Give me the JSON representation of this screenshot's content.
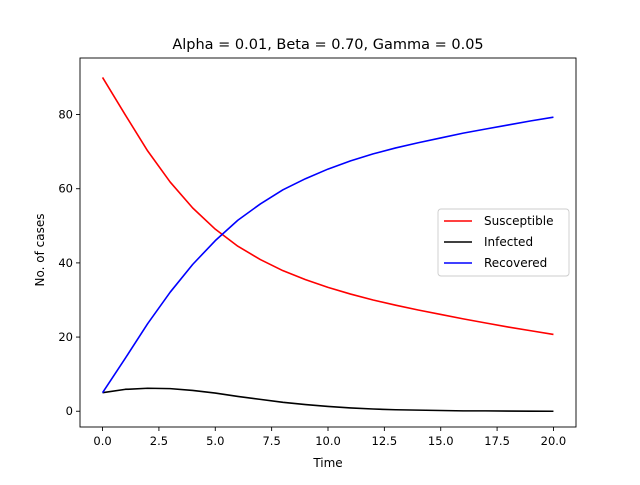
{
  "chart_data": {
    "type": "line",
    "title": "Alpha = 0.01, Beta = 0.70, Gamma = 0.05",
    "xlabel": "Time",
    "ylabel": "No. of cases",
    "xlim": [
      -1,
      21
    ],
    "ylim": [
      -4.25,
      95.25
    ],
    "x_ticks": [
      0.0,
      2.5,
      5.0,
      7.5,
      10.0,
      12.5,
      15.0,
      17.5,
      20.0
    ],
    "x_tick_labels": [
      "0.0",
      "2.5",
      "5.0",
      "7.5",
      "10.0",
      "12.5",
      "15.0",
      "17.5",
      "20.0"
    ],
    "y_ticks": [
      0,
      20,
      40,
      60,
      80
    ],
    "y_tick_labels": [
      "0",
      "20",
      "40",
      "60",
      "80"
    ],
    "grid": false,
    "legend_position": "center-right",
    "x": [
      0,
      1,
      2,
      3,
      4,
      5,
      6,
      7,
      8,
      9,
      10,
      11,
      12,
      13,
      14,
      15,
      16,
      17,
      18,
      19,
      20
    ],
    "series": [
      {
        "name": "Susceptible",
        "color": "#ff0000",
        "values": [
          90.0,
          80.0,
          70.2,
          61.8,
          54.8,
          49.1,
          44.5,
          40.9,
          37.9,
          35.5,
          33.4,
          31.6,
          30.0,
          28.6,
          27.3,
          26.1,
          24.9,
          23.8,
          22.7,
          21.7,
          20.7
        ]
      },
      {
        "name": "Infected",
        "color": "#000000",
        "values": [
          5.0,
          5.9,
          6.2,
          6.1,
          5.6,
          4.9,
          4.0,
          3.2,
          2.4,
          1.8,
          1.3,
          0.9,
          0.6,
          0.4,
          0.3,
          0.2,
          0.1,
          0.1,
          0.05,
          0.02,
          0.0
        ]
      },
      {
        "name": "Recovered",
        "color": "#0000ff",
        "values": [
          5.0,
          14.2,
          23.6,
          32.1,
          39.6,
          46.0,
          51.5,
          55.9,
          59.7,
          62.7,
          65.3,
          67.5,
          69.4,
          71.0,
          72.4,
          73.7,
          75.0,
          76.1,
          77.2,
          78.3,
          79.3
        ]
      }
    ]
  }
}
